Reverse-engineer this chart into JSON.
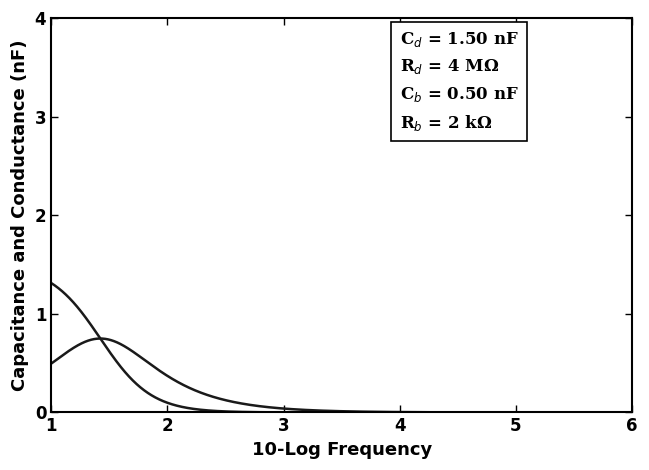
{
  "Cd": 1.5,
  "Rd": 4000000.0,
  "Cb": 0.5,
  "Rb": 2000.0,
  "xmin": 1,
  "xmax": 6,
  "ymin": 0,
  "ymax": 4,
  "xlabel": "10-Log Frequency",
  "ylabel": "Capacitance and Conductance (nF)",
  "annotation_lines": [
    "C$_d$ = 1.50 nF",
    "R$_d$ = 4 MΩ",
    "C$_b$ = 0.50 nF",
    "R$_b$ = 2 kΩ"
  ],
  "line_color": "#1a1a1a",
  "line_width": 1.8,
  "bg_color": "#ffffff",
  "tick_label_fontsize": 12,
  "axis_label_fontsize": 13,
  "annotation_fontsize": 12
}
